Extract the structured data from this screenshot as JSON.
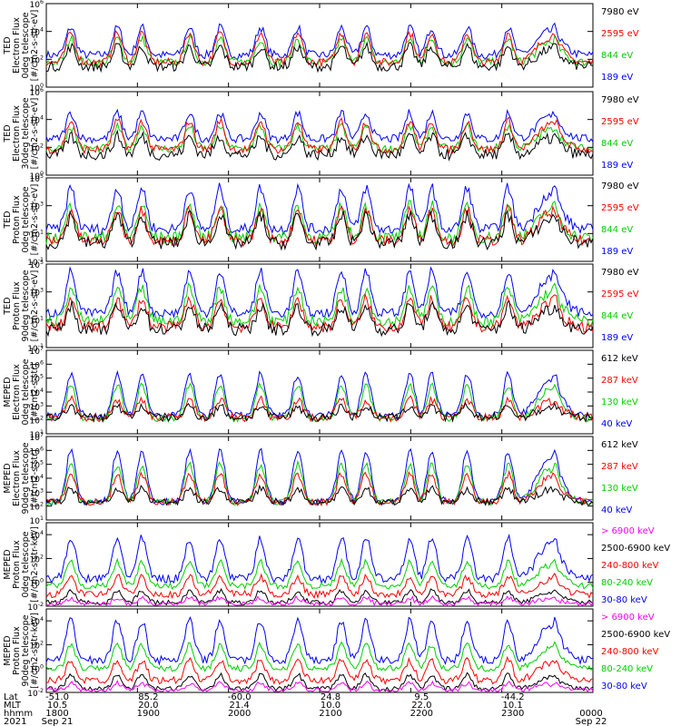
{
  "colors": {
    "blue": "#0000ff",
    "red": "#ff0000",
    "green": "#00d000",
    "black": "#000000",
    "magenta": "#ff00ff"
  },
  "chart_data": [
    {
      "type": "line",
      "ylabel": [
        "TED",
        "Electron Flux",
        "0deg telescope",
        "[#/cm2-s-str-eV]"
      ],
      "yscale": "log",
      "ylim": [
        1,
        1000000
      ],
      "yticks": [
        {
          "v": 1,
          "t": "10^0"
        },
        {
          "v": 100,
          "t": "10^2"
        },
        {
          "v": 10000,
          "t": "10^4"
        },
        {
          "v": 1000000,
          "t": "10^6"
        }
      ],
      "series": [
        {
          "name": "7980 eV",
          "color": "black",
          "base": 30,
          "peak": 800,
          "noise": 0.35
        },
        {
          "name": "2595 eV",
          "color": "red",
          "base": 60,
          "peak": 8000,
          "noise": 0.3
        },
        {
          "name": "844 eV",
          "color": "green",
          "base": 60,
          "peak": 3000,
          "noise": 0.3
        },
        {
          "name": "189 eV",
          "color": "blue",
          "base": 200,
          "peak": 20000,
          "noise": 0.3
        }
      ]
    },
    {
      "type": "line",
      "ylabel": [
        "TED",
        "Electron Flux",
        "30deg telescope",
        "[#/cm2-s-str-eV]"
      ],
      "yscale": "log",
      "ylim": [
        1,
        1000000
      ],
      "yticks": [
        {
          "v": 1,
          "t": "10^0"
        },
        {
          "v": 100,
          "t": "10^2"
        },
        {
          "v": 10000,
          "t": "10^4"
        },
        {
          "v": 1000000,
          "t": "10^6"
        }
      ],
      "series": [
        {
          "name": "7980 eV",
          "color": "black",
          "base": 30,
          "peak": 600,
          "noise": 0.4
        },
        {
          "name": "2595 eV",
          "color": "red",
          "base": 70,
          "peak": 8000,
          "noise": 0.3
        },
        {
          "name": "844 eV",
          "color": "green",
          "base": 80,
          "peak": 3000,
          "noise": 0.3
        },
        {
          "name": "189 eV",
          "color": "blue",
          "base": 400,
          "peak": 30000,
          "noise": 0.3
        }
      ]
    },
    {
      "type": "line",
      "ylabel": [
        "TED",
        "Proton Flux",
        "0deg telescope",
        "[#/cm2-s-str-eV]"
      ],
      "yscale": "log",
      "ylim": [
        0.1,
        100000
      ],
      "yticks": [
        {
          "v": 0.1,
          "t": "10^-1"
        },
        {
          "v": 10,
          "t": "10^1"
        },
        {
          "v": 1000,
          "t": "10^3"
        },
        {
          "v": 100000,
          "t": "10^5"
        }
      ],
      "series": [
        {
          "name": "7980 eV",
          "color": "black",
          "base": 2,
          "peak": 200,
          "noise": 0.45
        },
        {
          "name": "2595 eV",
          "color": "red",
          "base": 3,
          "peak": 500,
          "noise": 0.4
        },
        {
          "name": "844 eV",
          "color": "green",
          "base": 5,
          "peak": 1000,
          "noise": 0.45
        },
        {
          "name": "189 eV",
          "color": "blue",
          "base": 20,
          "peak": 20000,
          "noise": 0.4
        }
      ]
    },
    {
      "type": "line",
      "ylabel": [
        "TED",
        "Proton Flux",
        "90deg telescope",
        "[#/cm2-s-str-eV]"
      ],
      "yscale": "log",
      "ylim": [
        0.1,
        100000
      ],
      "yticks": [
        {
          "v": 0.1,
          "t": "10^-1"
        },
        {
          "v": 10,
          "t": "10^1"
        },
        {
          "v": 1000,
          "t": "10^3"
        },
        {
          "v": 100000,
          "t": "10^5"
        }
      ],
      "series": [
        {
          "name": "7980 eV",
          "color": "black",
          "base": 2,
          "peak": 100,
          "noise": 0.45
        },
        {
          "name": "2595 eV",
          "color": "red",
          "base": 3,
          "peak": 300,
          "noise": 0.4
        },
        {
          "name": "844 eV",
          "color": "green",
          "base": 8,
          "peak": 2000,
          "noise": 0.4
        },
        {
          "name": "189 eV",
          "color": "blue",
          "base": 30,
          "peak": 30000,
          "noise": 0.35
        }
      ]
    },
    {
      "type": "line",
      "ylabel": [
        "MEPED",
        "Electron Flux",
        "0deg telescope",
        "[#/cm2-s-str]"
      ],
      "yscale": "log",
      "ylim": [
        10,
        10000000
      ],
      "yticks": [
        {
          "v": 10,
          "t": "10^1"
        },
        {
          "v": 100,
          "t": "10^2"
        },
        {
          "v": 1000,
          "t": "10^3"
        },
        {
          "v": 10000,
          "t": "10^4"
        },
        {
          "v": 100000,
          "t": "10^5"
        },
        {
          "v": 1000000,
          "t": "10^6"
        },
        {
          "v": 10000000,
          "t": "10^7"
        }
      ],
      "series": [
        {
          "name": "612 keV",
          "color": "black",
          "base": 150,
          "peak": 1000,
          "noise": 0.3
        },
        {
          "name": "287 keV",
          "color": "red",
          "base": 150,
          "peak": 3000,
          "noise": 0.3
        },
        {
          "name": "130 keV",
          "color": "green",
          "base": 120,
          "peak": 30000,
          "noise": 0.25
        },
        {
          "name": "40 keV",
          "color": "blue",
          "base": 200,
          "peak": 200000,
          "noise": 0.25
        }
      ]
    },
    {
      "type": "line",
      "ylabel": [
        "MEPED",
        "Electron Flux",
        "90deg telescope",
        "[#/cm2-s-str]"
      ],
      "yscale": "log",
      "ylim": [
        10,
        10000000
      ],
      "yticks": [
        {
          "v": 10,
          "t": "10^1"
        },
        {
          "v": 100,
          "t": "10^2"
        },
        {
          "v": 1000,
          "t": "10^3"
        },
        {
          "v": 10000,
          "t": "10^4"
        },
        {
          "v": 100000,
          "t": "10^5"
        },
        {
          "v": 1000000,
          "t": "10^6"
        },
        {
          "v": 10000000,
          "t": "10^7"
        }
      ],
      "series": [
        {
          "name": "612 keV",
          "color": "black",
          "base": 200,
          "peak": 2000,
          "noise": 0.25
        },
        {
          "name": "287 keV",
          "color": "red",
          "base": 200,
          "peak": 20000,
          "noise": 0.25
        },
        {
          "name": "130 keV",
          "color": "green",
          "base": 200,
          "peak": 100000,
          "noise": 0.25
        },
        {
          "name": "40 keV",
          "color": "blue",
          "base": 200,
          "peak": 1000000,
          "noise": 0.25
        }
      ]
    },
    {
      "type": "line",
      "ylabel": [
        "MEPED",
        "Proton Flux",
        "0deg telescope",
        "[#/cm2-s-str-keV]"
      ],
      "yscale": "log",
      "ylim": [
        0.01,
        100000
      ],
      "yticks": [
        {
          "v": 0.01,
          "t": "10^-2"
        },
        {
          "v": 1,
          "t": "10^0"
        },
        {
          "v": 100,
          "t": "10^2"
        },
        {
          "v": 10000,
          "t": "10^4"
        }
      ],
      "series": [
        {
          "name": "> 6900 keV",
          "color": "magenta",
          "base": 0.015,
          "peak": 0.05,
          "noise": 0.2
        },
        {
          "name": "2500-6900 keV",
          "color": "black",
          "base": 0.02,
          "peak": 0.2,
          "noise": 0.2
        },
        {
          "name": "240-800 keV",
          "color": "red",
          "base": 0.1,
          "peak": 3,
          "noise": 0.3
        },
        {
          "name": "80-240 keV",
          "color": "green",
          "base": 0.5,
          "peak": 50,
          "noise": 0.25
        },
        {
          "name": "30-80 keV",
          "color": "blue",
          "base": 2,
          "peak": 5000,
          "noise": 0.35
        }
      ]
    },
    {
      "type": "line",
      "ylabel": [
        "MEPED",
        "Proton Flux",
        "90deg telescope",
        "[#/cm2-s-str-keV]"
      ],
      "yscale": "log",
      "ylim": [
        0.01,
        100000
      ],
      "yticks": [
        {
          "v": 0.01,
          "t": "10^-2"
        },
        {
          "v": 1,
          "t": "10^0"
        },
        {
          "v": 100,
          "t": "10^2"
        },
        {
          "v": 10000,
          "t": "10^4"
        }
      ],
      "series": [
        {
          "name": "> 6900 keV",
          "color": "magenta",
          "base": 0.015,
          "peak": 0.06,
          "noise": 0.2
        },
        {
          "name": "2500-6900 keV",
          "color": "black",
          "base": 0.02,
          "peak": 0.3,
          "noise": 0.2
        },
        {
          "name": "240-800 keV",
          "color": "red",
          "base": 0.1,
          "peak": 5,
          "noise": 0.3
        },
        {
          "name": "80-240 keV",
          "color": "green",
          "base": 1,
          "peak": 100,
          "noise": 0.25
        },
        {
          "name": "30-80 keV",
          "color": "blue",
          "base": 5,
          "peak": 10000,
          "noise": 0.35
        }
      ]
    }
  ],
  "xaxis": {
    "xlim": [
      1800,
      2400
    ],
    "row_titles": [
      "Lat",
      "MLT",
      "hhmm",
      "2021"
    ],
    "ticks": [
      {
        "x": 1800,
        "lat": "-51.0",
        "mlt": "10.5",
        "hhmm": "1800",
        "date": "Sep 21"
      },
      {
        "x": 1850,
        "lat": "85.2",
        "mlt": "20.0",
        "hhmm": "1900",
        "date": ""
      },
      {
        "x": 1900,
        "lat": "-60.0",
        "mlt": "21.4",
        "hhmm": "2000",
        "date": ""
      },
      {
        "x": 1950,
        "lat": "24.8",
        "mlt": "10.0",
        "hhmm": "2100",
        "date": ""
      },
      {
        "x": 2000,
        "lat": "9.5",
        "mlt": "22.0",
        "hhmm": "2200",
        "date": ""
      },
      {
        "x": 2050,
        "lat": "-44.2",
        "mlt": "10.1",
        "hhmm": "2300",
        "date": ""
      },
      {
        "x": 2100,
        "lat": "",
        "mlt": "",
        "hhmm": "0000",
        "date": "Sep 22"
      }
    ]
  }
}
